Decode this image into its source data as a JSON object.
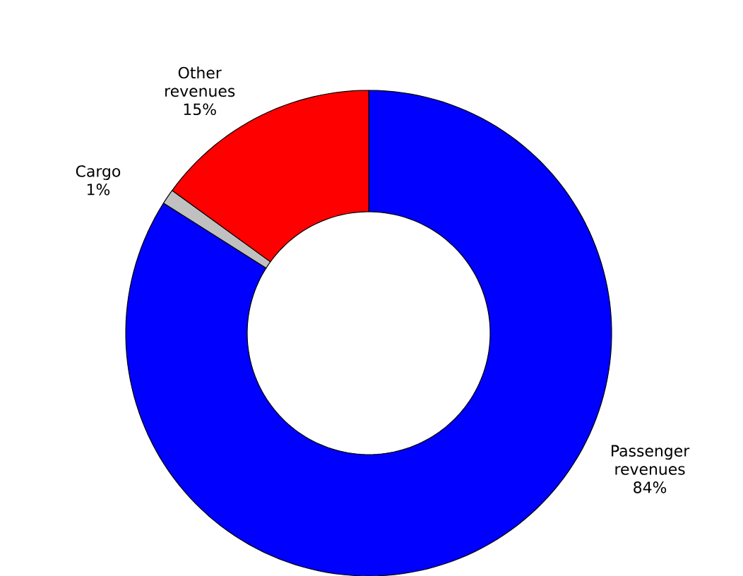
{
  "chart_data": {
    "type": "donut",
    "categories": [
      "Passenger revenues",
      "Cargo",
      "Other revenues"
    ],
    "values": [
      84,
      1,
      15
    ],
    "colors": [
      "#0000ff",
      "#c0c0c0",
      "#ff0000"
    ],
    "value_labels": [
      "84%",
      "1%",
      "15%"
    ]
  }
}
